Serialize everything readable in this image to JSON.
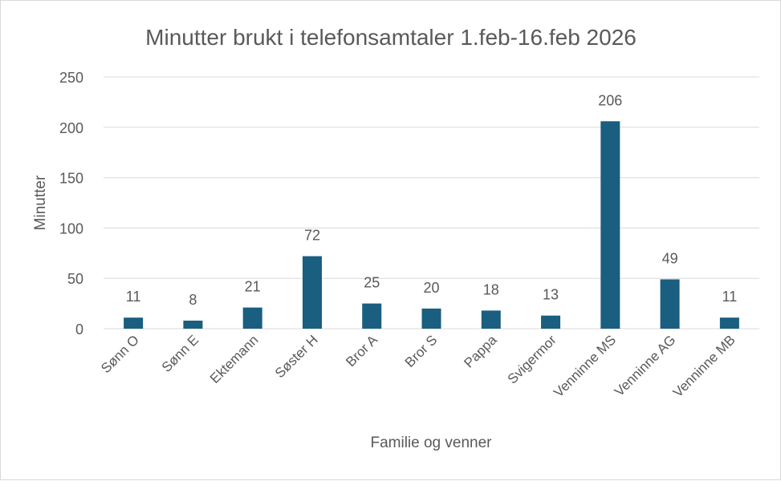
{
  "chart_data": {
    "type": "bar",
    "title": "Minutter brukt i telefonsamtaler 1.feb-16.feb 2026",
    "xlabel": "Familie og venner",
    "ylabel": "Minutter",
    "ylim": [
      0,
      250
    ],
    "yticks": [
      0,
      50,
      100,
      150,
      200,
      250
    ],
    "grid": true,
    "categories": [
      "Sønn O",
      "Sønn E",
      "Ektemann",
      "Søster H",
      "Bror A",
      "Bror S",
      "Pappa",
      "Svigermor",
      "Venninne MS",
      "Venninne AG",
      "Venninne MB"
    ],
    "values": [
      11,
      8,
      21,
      72,
      25,
      20,
      18,
      13,
      206,
      49,
      11
    ],
    "data_labels": true,
    "bar_color": "#1a5e80"
  }
}
